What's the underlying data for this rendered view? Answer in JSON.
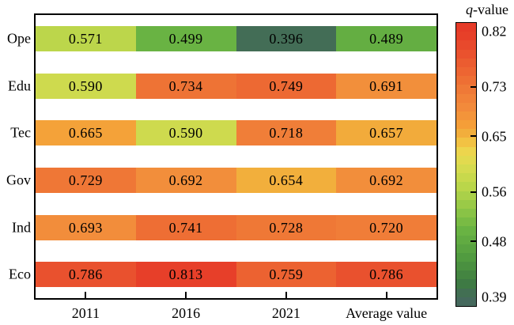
{
  "chart_data": {
    "type": "heatmap",
    "rows": [
      "Ope",
      "Edu",
      "Tec",
      "Gov",
      "Ind",
      "Eco"
    ],
    "columns": [
      "2011",
      "2016",
      "2021",
      "Average value"
    ],
    "values": [
      [
        0.571,
        0.499,
        0.396,
        0.489
      ],
      [
        0.59,
        0.734,
        0.749,
        0.691
      ],
      [
        0.665,
        0.59,
        0.718,
        0.657
      ],
      [
        0.729,
        0.692,
        0.654,
        0.692
      ],
      [
        0.693,
        0.741,
        0.728,
        0.72
      ],
      [
        0.786,
        0.813,
        0.759,
        0.786
      ]
    ],
    "value_decimals": 3,
    "colorbar": {
      "title_italic": "q",
      "title_rest": "-value",
      "range": [
        0.39,
        0.82
      ],
      "tick_values": [
        0.82,
        0.73,
        0.65,
        0.56,
        0.48,
        0.39
      ],
      "tick_labels": [
        "0.82",
        "0.73",
        "0.65",
        "0.56",
        "0.48",
        "0.39"
      ],
      "inner_tick_values": [
        0.73,
        0.65,
        0.56,
        0.48
      ]
    },
    "colormap_anchors": [
      [
        0.39,
        "#45695d"
      ],
      [
        0.402,
        "#40714f"
      ],
      [
        0.415,
        "#3e7c41"
      ],
      [
        0.46,
        "#539e40"
      ],
      [
        0.5,
        "#6ab443"
      ],
      [
        0.54,
        "#99ca47"
      ],
      [
        0.575,
        "#c0d84b"
      ],
      [
        0.605,
        "#dcdc50"
      ],
      [
        0.627,
        "#eed54d"
      ],
      [
        0.641,
        "#f2c143"
      ],
      [
        0.656,
        "#f2ac3b"
      ],
      [
        0.668,
        "#f59f38"
      ],
      [
        0.695,
        "#f28c3b"
      ],
      [
        0.722,
        "#f07c38"
      ],
      [
        0.737,
        "#ee7134"
      ],
      [
        0.762,
        "#ec6031"
      ],
      [
        0.79,
        "#e94e2d"
      ],
      [
        0.82,
        "#e63b28"
      ]
    ],
    "colors": {
      "border": "#000000",
      "text": "#000000",
      "background": "#ffffff"
    }
  }
}
